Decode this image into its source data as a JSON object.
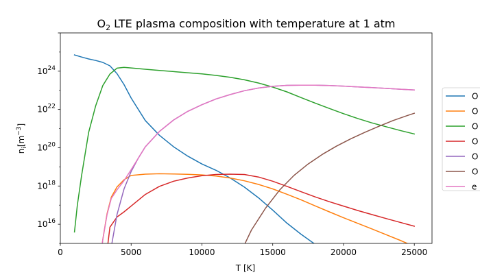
{
  "chart_data": {
    "type": "line",
    "title": "O₂ LTE plasma composition with temperature at 1 atm",
    "title_parts": [
      "O",
      "2",
      " LTE plasma composition with temperature at 1 atm"
    ],
    "xlabel": "T [K]",
    "ylabel_parts": [
      "n",
      "i",
      "[m",
      "−3",
      "]"
    ],
    "xlim": [
      0,
      26250
    ],
    "ylim": [
      1000000000000000.0,
      1e+26
    ],
    "yscale": "log",
    "grid": false,
    "legend_position": "right",
    "x_ticks": [
      0,
      5000,
      10000,
      15000,
      20000,
      25000
    ],
    "y_ticks": [
      {
        "value": 1e+16,
        "base": "10",
        "exp": "16"
      },
      {
        "value": 1e+18,
        "base": "10",
        "exp": "18"
      },
      {
        "value": 1e+20,
        "base": "10",
        "exp": "20"
      },
      {
        "value": 1e+22,
        "base": "10",
        "exp": "22"
      },
      {
        "value": 1e+24,
        "base": "10",
        "exp": "24"
      }
    ],
    "series": [
      {
        "name": "O",
        "color": "#1f77b4",
        "points": [
          [
            1000,
            24.85
          ],
          [
            1500,
            24.74
          ],
          [
            2000,
            24.64
          ],
          [
            2500,
            24.56
          ],
          [
            3000,
            24.46
          ],
          [
            3500,
            24.28
          ],
          [
            4000,
            23.87
          ],
          [
            4500,
            23.3
          ],
          [
            5000,
            22.6
          ],
          [
            6000,
            21.42
          ],
          [
            7000,
            20.65
          ],
          [
            8000,
            20.05
          ],
          [
            9000,
            19.56
          ],
          [
            10000,
            19.15
          ],
          [
            11000,
            18.82
          ],
          [
            12000,
            18.42
          ],
          [
            13000,
            17.94
          ],
          [
            14000,
            17.38
          ],
          [
            15000,
            16.74
          ],
          [
            16000,
            16.06
          ],
          [
            17000,
            15.48
          ],
          [
            18000,
            14.95
          ],
          [
            18500,
            14.62
          ]
        ]
      },
      {
        "name": "O",
        "color": "#ff7f0e",
        "points": [
          [
            2900,
            14.62
          ],
          [
            3000,
            15.2
          ],
          [
            3300,
            16.55
          ],
          [
            3600,
            17.42
          ],
          [
            4000,
            17.95
          ],
          [
            4500,
            18.33
          ],
          [
            5000,
            18.55
          ],
          [
            6000,
            18.62
          ],
          [
            7000,
            18.64
          ],
          [
            8000,
            18.63
          ],
          [
            9000,
            18.61
          ],
          [
            10000,
            18.58
          ],
          [
            11000,
            18.52
          ],
          [
            12000,
            18.42
          ],
          [
            13000,
            18.27
          ],
          [
            14000,
            18.08
          ],
          [
            15000,
            17.85
          ],
          [
            16000,
            17.57
          ],
          [
            17000,
            17.28
          ],
          [
            18000,
            16.96
          ],
          [
            19000,
            16.65
          ],
          [
            20000,
            16.34
          ],
          [
            21000,
            16.05
          ],
          [
            22000,
            15.76
          ],
          [
            23000,
            15.46
          ],
          [
            24000,
            15.16
          ],
          [
            25000,
            14.84
          ]
        ]
      },
      {
        "name": "O",
        "color": "#2ca02c",
        "points": [
          [
            1000,
            15.6
          ],
          [
            1200,
            17.0
          ],
          [
            1500,
            18.55
          ],
          [
            2000,
            20.8
          ],
          [
            2500,
            22.2
          ],
          [
            3000,
            23.25
          ],
          [
            3500,
            23.85
          ],
          [
            4000,
            24.16
          ],
          [
            4500,
            24.2
          ],
          [
            5000,
            24.17
          ],
          [
            6000,
            24.1
          ],
          [
            7000,
            24.04
          ],
          [
            8000,
            23.98
          ],
          [
            9000,
            23.92
          ],
          [
            10000,
            23.86
          ],
          [
            11000,
            23.78
          ],
          [
            12000,
            23.68
          ],
          [
            13000,
            23.55
          ],
          [
            14000,
            23.38
          ],
          [
            15000,
            23.17
          ],
          [
            16000,
            22.92
          ],
          [
            17000,
            22.62
          ],
          [
            18000,
            22.33
          ],
          [
            19000,
            22.05
          ],
          [
            20000,
            21.78
          ],
          [
            21000,
            21.53
          ],
          [
            22000,
            21.3
          ],
          [
            23000,
            21.1
          ],
          [
            24000,
            20.9
          ],
          [
            25000,
            20.72
          ]
        ]
      },
      {
        "name": "O",
        "color": "#d62728",
        "points": [
          [
            3300,
            14.62
          ],
          [
            3500,
            15.85
          ],
          [
            4000,
            16.38
          ],
          [
            4500,
            16.65
          ],
          [
            5000,
            16.95
          ],
          [
            6000,
            17.56
          ],
          [
            7000,
            17.98
          ],
          [
            8000,
            18.25
          ],
          [
            9000,
            18.42
          ],
          [
            10000,
            18.54
          ],
          [
            11000,
            18.6
          ],
          [
            12000,
            18.62
          ],
          [
            13000,
            18.6
          ],
          [
            14000,
            18.47
          ],
          [
            15000,
            18.25
          ],
          [
            16000,
            17.98
          ],
          [
            17000,
            17.7
          ],
          [
            18000,
            17.43
          ],
          [
            19000,
            17.18
          ],
          [
            20000,
            16.95
          ],
          [
            21000,
            16.72
          ],
          [
            22000,
            16.51
          ],
          [
            23000,
            16.3
          ],
          [
            24000,
            16.1
          ],
          [
            25000,
            15.9
          ]
        ]
      },
      {
        "name": "O",
        "color": "#9467bd",
        "points": [
          [
            3550,
            14.62
          ],
          [
            4000,
            16.5
          ],
          [
            4500,
            17.85
          ],
          [
            5000,
            18.75
          ],
          [
            5500,
            19.45
          ],
          [
            6000,
            20.05
          ],
          [
            7000,
            20.85
          ],
          [
            8000,
            21.45
          ],
          [
            9000,
            21.9
          ],
          [
            10000,
            22.25
          ],
          [
            11000,
            22.55
          ],
          [
            12000,
            22.78
          ],
          [
            13000,
            22.98
          ],
          [
            14000,
            23.12
          ],
          [
            15000,
            23.21
          ],
          [
            16000,
            23.26
          ],
          [
            17000,
            23.27
          ],
          [
            18000,
            23.27
          ],
          [
            19000,
            23.25
          ],
          [
            20000,
            23.22
          ],
          [
            21000,
            23.18
          ],
          [
            22000,
            23.14
          ],
          [
            23000,
            23.1
          ],
          [
            24000,
            23.06
          ],
          [
            25000,
            23.02
          ]
        ]
      },
      {
        "name": "O",
        "color": "#8c564b",
        "points": [
          [
            12800,
            14.62
          ],
          [
            13500,
            15.7
          ],
          [
            14500,
            16.85
          ],
          [
            15500,
            17.8
          ],
          [
            16500,
            18.55
          ],
          [
            17500,
            19.15
          ],
          [
            18500,
            19.65
          ],
          [
            19500,
            20.08
          ],
          [
            20500,
            20.46
          ],
          [
            21500,
            20.8
          ],
          [
            22500,
            21.12
          ],
          [
            23500,
            21.42
          ],
          [
            24500,
            21.68
          ],
          [
            25000,
            21.8
          ]
        ]
      },
      {
        "name": "e",
        "color": "#e377c2",
        "points": [
          [
            2900,
            14.62
          ],
          [
            3000,
            15.2
          ],
          [
            3300,
            16.5
          ],
          [
            3600,
            17.35
          ],
          [
            4000,
            17.8
          ],
          [
            4500,
            18.28
          ],
          [
            5000,
            18.85
          ],
          [
            5500,
            19.45
          ],
          [
            6000,
            20.05
          ],
          [
            7000,
            20.85
          ],
          [
            8000,
            21.45
          ],
          [
            9000,
            21.9
          ],
          [
            10000,
            22.25
          ],
          [
            11000,
            22.55
          ],
          [
            12000,
            22.78
          ],
          [
            13000,
            22.98
          ],
          [
            14000,
            23.12
          ],
          [
            15000,
            23.21
          ],
          [
            16000,
            23.26
          ],
          [
            17000,
            23.27
          ],
          [
            18000,
            23.27
          ],
          [
            19000,
            23.25
          ],
          [
            20000,
            23.22
          ],
          [
            21000,
            23.18
          ],
          [
            22000,
            23.14
          ],
          [
            23000,
            23.1
          ],
          [
            24000,
            23.06
          ],
          [
            25000,
            23.02
          ]
        ]
      }
    ]
  }
}
